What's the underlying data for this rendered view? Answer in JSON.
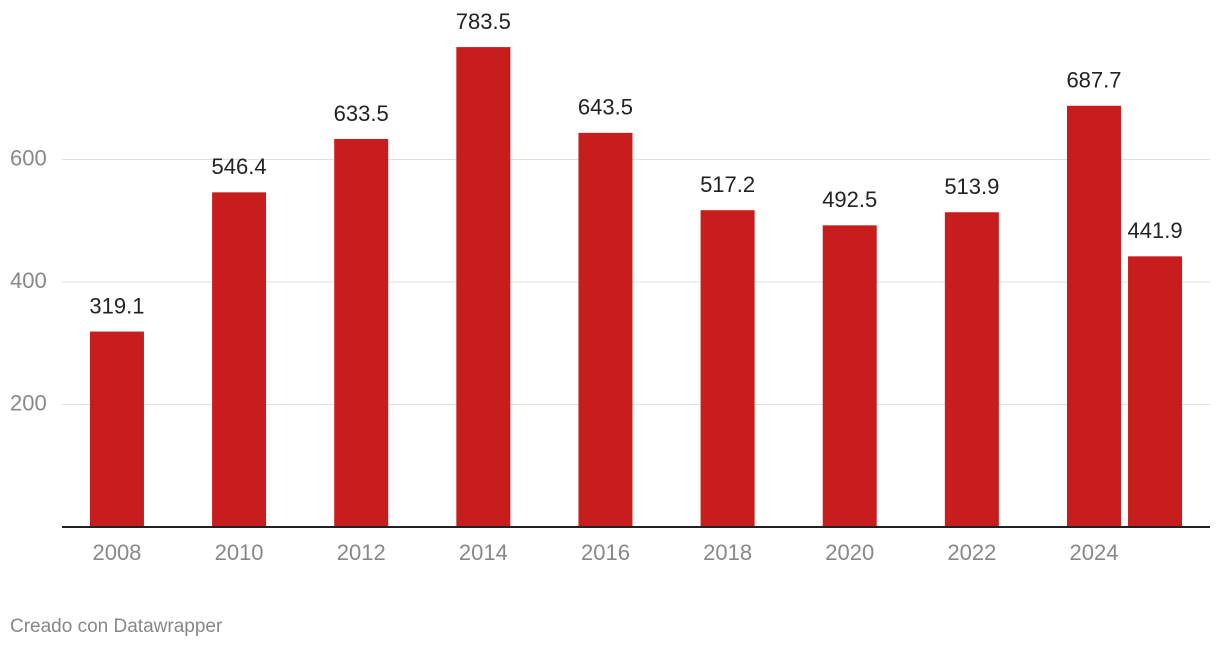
{
  "chart_data": {
    "type": "bar",
    "x": [
      2008,
      2010,
      2012,
      2014,
      2016,
      2018,
      2020,
      2022,
      2024,
      2025
    ],
    "values": [
      319.1,
      546.4,
      633.5,
      783.5,
      643.5,
      517.2,
      492.5,
      513.9,
      687.7,
      441.9
    ],
    "color": "#c71d1d",
    "xlim": [
      2007.1,
      2025.9
    ],
    "xticks": [
      2008,
      2010,
      2012,
      2014,
      2016,
      2018,
      2020,
      2022,
      2024
    ],
    "ylim": [
      0,
      800
    ],
    "yticks": [
      200,
      400,
      600
    ],
    "grid": true,
    "footer": "Creado con Datawrapper"
  }
}
